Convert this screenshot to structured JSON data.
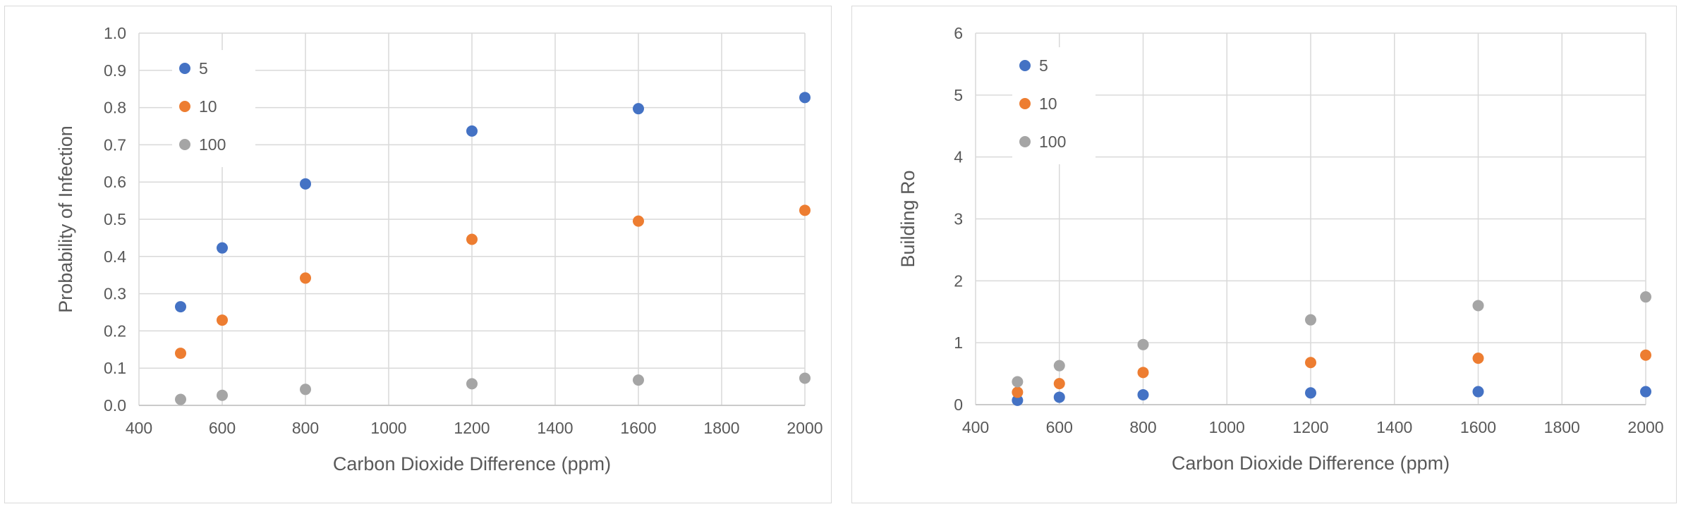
{
  "chart_data": [
    {
      "type": "scatter",
      "title": "",
      "xlabel": "Carbon Dioxide Difference (ppm)",
      "ylabel": "Probability of Infection",
      "xlim": [
        400,
        2000
      ],
      "ylim": [
        0,
        1
      ],
      "xticks": [
        "400",
        "600",
        "800",
        "1000",
        "1200",
        "1400",
        "1600",
        "1800",
        "2000"
      ],
      "yticks": [
        "0.0",
        "0.1",
        "0.2",
        "0.3",
        "0.4",
        "0.5",
        "0.6",
        "0.7",
        "0.8",
        "0.9",
        "1.0"
      ],
      "grid": true,
      "legend_position": "top-left",
      "x": [
        500,
        600,
        800,
        1200,
        1600,
        2000
      ],
      "series": [
        {
          "name": "5",
          "color": "#4472C4",
          "values": [
            0.265,
            0.423,
            0.595,
            0.737,
            0.797,
            0.827
          ]
        },
        {
          "name": "10",
          "color": "#ED7D31",
          "values": [
            0.14,
            0.229,
            0.342,
            0.446,
            0.495,
            0.524
          ]
        },
        {
          "name": "100",
          "color": "#A5A5A5",
          "values": [
            0.016,
            0.027,
            0.043,
            0.058,
            0.068,
            0.073
          ]
        }
      ]
    },
    {
      "type": "scatter",
      "title": "",
      "xlabel": "Carbon Dioxide Difference (ppm)",
      "ylabel": "Building Ro",
      "xlim": [
        400,
        2000
      ],
      "ylim": [
        0,
        6
      ],
      "xticks": [
        "400",
        "600",
        "800",
        "1000",
        "1200",
        "1400",
        "1600",
        "1800",
        "2000"
      ],
      "yticks": [
        "0",
        "1",
        "2",
        "3",
        "4",
        "5",
        "6"
      ],
      "grid": true,
      "legend_position": "top-left",
      "x": [
        500,
        600,
        800,
        1200,
        1600,
        2000
      ],
      "series": [
        {
          "name": "5",
          "color": "#4472C4",
          "values": [
            0.07,
            0.12,
            0.16,
            0.19,
            0.21,
            0.21
          ]
        },
        {
          "name": "10",
          "color": "#ED7D31",
          "values": [
            0.2,
            0.34,
            0.52,
            0.68,
            0.75,
            0.8
          ]
        },
        {
          "name": "100",
          "color": "#A5A5A5",
          "values": [
            0.37,
            0.63,
            0.97,
            1.37,
            1.6,
            1.74
          ]
        }
      ]
    }
  ]
}
